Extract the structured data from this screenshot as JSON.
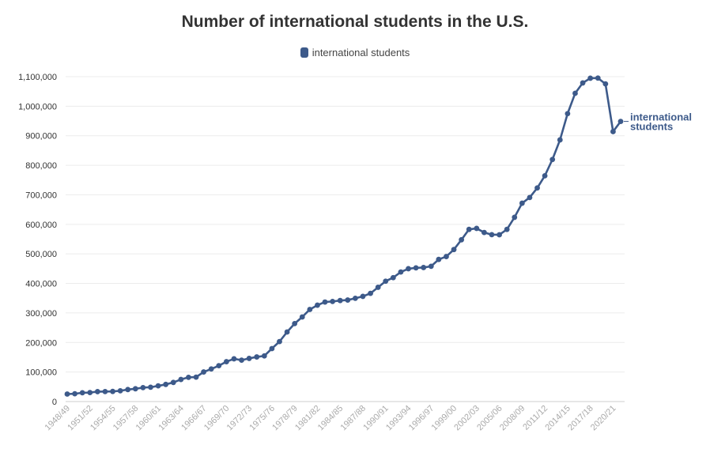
{
  "chart_data": {
    "type": "line",
    "title": "Number of international students in the U.S.",
    "xlabel": "",
    "ylabel": "",
    "ylim": [
      0,
      1100000
    ],
    "yticks": [
      0,
      100000,
      200000,
      300000,
      400000,
      500000,
      600000,
      700000,
      800000,
      900000,
      1000000,
      1100000
    ],
    "ytick_labels": [
      "0",
      "100,000",
      "200,000",
      "300,000",
      "400,000",
      "500,000",
      "600,000",
      "700,000",
      "800,000",
      "900,000",
      "1,000,000",
      "1,100,000"
    ],
    "grid": true,
    "legend_position": "top-center",
    "x": [
      "1948/49",
      "1949/50",
      "1950/51",
      "1951/52",
      "1952/53",
      "1953/54",
      "1954/55",
      "1955/56",
      "1956/57",
      "1957/58",
      "1958/59",
      "1959/60",
      "1960/61",
      "1961/62",
      "1962/63",
      "1963/64",
      "1964/65",
      "1965/66",
      "1966/67",
      "1967/68",
      "1968/69",
      "1969/70",
      "1970/71",
      "1971/72",
      "1972/73",
      "1973/74",
      "1974/75",
      "1975/76",
      "1976/77",
      "1977/78",
      "1978/79",
      "1979/80",
      "1980/81",
      "1981/82",
      "1982/83",
      "1983/84",
      "1984/85",
      "1985/86",
      "1986/87",
      "1987/88",
      "1988/89",
      "1989/90",
      "1990/91",
      "1991/92",
      "1992/93",
      "1993/94",
      "1994/95",
      "1995/96",
      "1996/97",
      "1997/98",
      "1998/99",
      "1999/00",
      "2000/01",
      "2001/02",
      "2002/03",
      "2003/04",
      "2004/05",
      "2005/06",
      "2006/07",
      "2007/08",
      "2008/09",
      "2009/10",
      "2010/11",
      "2011/12",
      "2012/13",
      "2013/14",
      "2014/15",
      "2015/16",
      "2016/17",
      "2017/18",
      "2018/19",
      "2019/20",
      "2020/21",
      "2021/22"
    ],
    "x_tick_labels": [
      "1948/49",
      "1951/52",
      "1954/55",
      "1957/58",
      "1960/61",
      "1963/64",
      "1966/67",
      "1969/70",
      "1972/73",
      "1975/76",
      "1978/79",
      "1981/82",
      "1984/85",
      "1987/88",
      "1990/91",
      "1993/94",
      "1996/97",
      "1999/00",
      "2002/03",
      "2005/06",
      "2008/09",
      "2011/12",
      "2014/15",
      "2017/18",
      "2020/21"
    ],
    "series": [
      {
        "name": "international students",
        "color": "#3d5a8a",
        "values": [
          25464,
          26433,
          29813,
          30462,
          33675,
          33833,
          34232,
          36494,
          40666,
          43391,
          47245,
          48486,
          53107,
          58086,
          64705,
          74814,
          82045,
          82709,
          100262,
          110315,
          121362,
          134959,
          144708,
          140126,
          146097,
          151066,
          154580,
          179344,
          203068,
          235509,
          263938,
          286343,
          311882,
          326299,
          336985,
          338894,
          342113,
          343777,
          349609,
          356187,
          366354,
          386851,
          407529,
          419585,
          438618,
          449749,
          452635,
          453787,
          457984,
          481280,
          490933,
          514723,
          547867,
          582996,
          586323,
          572509,
          565039,
          564766,
          582984,
          623805,
          671616,
          690923,
          723277,
          764495,
          819644,
          886052,
          974926,
          1043839,
          1078822,
          1094792,
          1095299,
          1075496,
          914095,
          948519
        ]
      }
    ]
  }
}
